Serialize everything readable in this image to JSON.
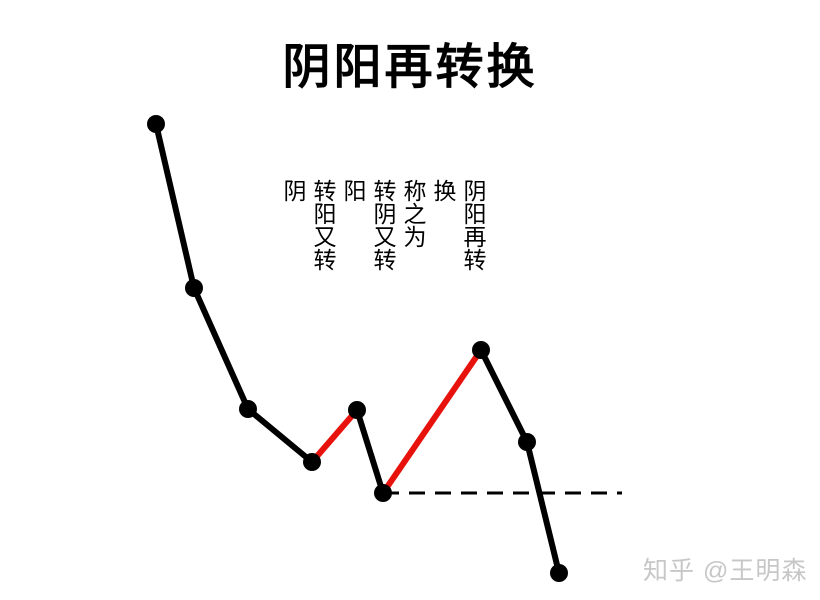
{
  "title": "阴阳再转换",
  "annotation": {
    "columns": [
      "阴",
      "转阳又转",
      "阳",
      "转阴又转",
      "称之为",
      "换",
      "阴阳再转"
    ]
  },
  "watermark": {
    "text": "知乎 @王明森"
  },
  "colors": {
    "line_black": "#000000",
    "line_red": "#e8120c",
    "watermark_gray": "#c7c7c7",
    "background": "#ffffff"
  },
  "chart_data": {
    "type": "line",
    "title": "阴阳再转换",
    "grid": false,
    "legend": false,
    "points": [
      [
        156,
        124
      ],
      [
        194,
        288
      ],
      [
        248,
        409
      ],
      [
        312,
        462
      ],
      [
        357,
        410
      ],
      [
        383,
        493
      ],
      [
        481,
        350
      ],
      [
        527,
        442
      ],
      [
        559,
        573
      ]
    ],
    "segment_colors": [
      "black",
      "black",
      "black",
      "red",
      "black",
      "red",
      "black",
      "black"
    ],
    "line_width": 6,
    "point_radius": 9,
    "dashed_line": {
      "from": [
        383,
        493
      ],
      "to": [
        622,
        493
      ],
      "stroke_width": 3,
      "dash_pattern": "16 10"
    }
  }
}
